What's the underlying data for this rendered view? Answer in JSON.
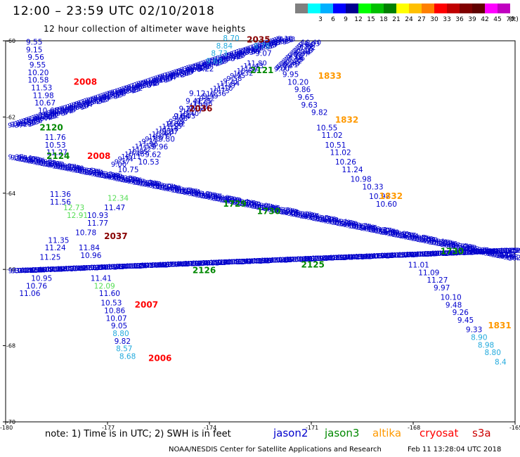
{
  "title": "12:00 – 23:59 UTC 02/10/2018",
  "subtitle": "12 hour collection of altimeter wave heights",
  "scale": {
    "unit": "(ft)",
    "swatches": [
      {
        "label": "",
        "color": "#808080"
      },
      {
        "label": "3",
        "color": "#00ffff"
      },
      {
        "label": "6",
        "color": "#00b0ff"
      },
      {
        "label": "9",
        "color": "#0000ff"
      },
      {
        "label": "12",
        "color": "#000090"
      },
      {
        "label": "15",
        "color": "#00ff00"
      },
      {
        "label": "18",
        "color": "#00c000"
      },
      {
        "label": "21",
        "color": "#008000"
      },
      {
        "label": "24",
        "color": "#ffff00"
      },
      {
        "label": "27",
        "color": "#ffc000"
      },
      {
        "label": "30",
        "color": "#ff8000"
      },
      {
        "label": "33",
        "color": "#ff0000"
      },
      {
        "label": "36",
        "color": "#c00000"
      },
      {
        "label": "39",
        "color": "#800000"
      },
      {
        "label": "42",
        "color": "#600000"
      },
      {
        "label": "45",
        "color": "#ff00ff"
      },
      {
        "label": "70",
        "color": "#c000c0"
      }
    ]
  },
  "axes": {
    "lat_ticks": [
      "-60",
      "-62",
      "-64",
      "-66",
      "-68",
      "-70"
    ],
    "lon_ticks": [
      "-180",
      "-177",
      "-174",
      "-171",
      "-168",
      "-165"
    ]
  },
  "note": "note: 1) Time is in UTC; 2) SWH is in feet",
  "legend": [
    {
      "name": "jason2",
      "color": "#0000cc"
    },
    {
      "name": "jason3",
      "color": "#008800"
    },
    {
      "name": "altika",
      "color": "#ff9900"
    },
    {
      "name": "cryosat",
      "color": "#ff0000"
    },
    {
      "name": "s3a",
      "color": "#cc0000"
    }
  ],
  "credit": "NOAA/NESDIS Center for Satellite Applications and Research",
  "stamp": "Feb 11 13:28:04 UTC 2018",
  "colors": {
    "jason2": "#0000cc",
    "jason3": "#008800",
    "jason3_light": "#55dd55",
    "altika": "#ff9900",
    "cryosat": "#ff0000",
    "s3a": "#880000",
    "sentinel_cyan": "#22aadd"
  },
  "labels": [
    {
      "t": "9.55",
      "lon": -179.4,
      "lat": -60.1,
      "c": "jason2"
    },
    {
      "t": "9.15",
      "lon": -179.4,
      "lat": -60.3,
      "c": "jason2"
    },
    {
      "t": "9.56",
      "lon": -179.35,
      "lat": -60.5,
      "c": "jason2"
    },
    {
      "t": "9.55",
      "lon": -179.3,
      "lat": -60.7,
      "c": "jason2"
    },
    {
      "t": "10.20",
      "lon": -179.35,
      "lat": -60.9,
      "c": "jason2"
    },
    {
      "t": "10.58",
      "lon": -179.35,
      "lat": -61.1,
      "c": "jason2"
    },
    {
      "t": "11.53",
      "lon": -179.25,
      "lat": -61.3,
      "c": "jason2"
    },
    {
      "t": "11.98",
      "lon": -179.2,
      "lat": -61.5,
      "c": "jason2"
    },
    {
      "t": "10.67",
      "lon": -179.15,
      "lat": -61.7,
      "c": "jason2"
    },
    {
      "t": "10.65",
      "lon": -179.05,
      "lat": -61.9,
      "c": "jason2"
    },
    {
      "t": "11.76",
      "lon": -178.85,
      "lat": -62.6,
      "c": "jason2"
    },
    {
      "t": "10.53",
      "lon": -178.85,
      "lat": -62.8,
      "c": "jason2"
    },
    {
      "t": "11.27",
      "lon": -178.8,
      "lat": -63.0,
      "c": "jason2"
    },
    {
      "t": "11.36",
      "lon": -178.7,
      "lat": -64.1,
      "c": "jason2"
    },
    {
      "t": "11.56",
      "lon": -178.7,
      "lat": -64.3,
      "c": "jason2"
    },
    {
      "t": "11.24",
      "lon": -178.85,
      "lat": -65.5,
      "c": "jason2"
    },
    {
      "t": "11.35",
      "lon": -178.75,
      "lat": -65.3,
      "c": "jason2"
    },
    {
      "t": "11.25",
      "lon": -179.0,
      "lat": -65.75,
      "c": "jason2"
    },
    {
      "t": "10.95",
      "lon": -179.25,
      "lat": -66.3,
      "c": "jason2"
    },
    {
      "t": "10.76",
      "lon": -179.4,
      "lat": -66.5,
      "c": "jason2"
    },
    {
      "t": "11.06",
      "lon": -179.6,
      "lat": -66.7,
      "c": "jason2"
    },
    {
      "t": "12.34",
      "lon": -177.0,
      "lat": -64.2,
      "c": "jason3_light"
    },
    {
      "t": "11.47",
      "lon": -177.1,
      "lat": -64.45,
      "c": "jason2"
    },
    {
      "t": "12.73",
      "lon": -178.3,
      "lat": -64.45,
      "c": "jason3_light"
    },
    {
      "t": "10.93",
      "lon": -177.6,
      "lat": -64.65,
      "c": "jason2"
    },
    {
      "t": "12.91",
      "lon": -178.2,
      "lat": -64.65,
      "c": "jason3_light"
    },
    {
      "t": "11.77",
      "lon": -177.6,
      "lat": -64.85,
      "c": "jason2"
    },
    {
      "t": "10.78",
      "lon": -177.95,
      "lat": -65.1,
      "c": "jason2"
    },
    {
      "t": "11.84",
      "lon": -177.85,
      "lat": -65.5,
      "c": "jason2"
    },
    {
      "t": "10.96",
      "lon": -177.8,
      "lat": -65.7,
      "c": "jason2"
    },
    {
      "t": "11.41",
      "lon": -177.5,
      "lat": -66.3,
      "c": "jason2"
    },
    {
      "t": "12.09",
      "lon": -177.4,
      "lat": -66.5,
      "c": "jason3_light"
    },
    {
      "t": "11.60",
      "lon": -177.25,
      "lat": -66.7,
      "c": "jason2"
    },
    {
      "t": "10.53",
      "lon": -177.2,
      "lat": -66.95,
      "c": "jason2"
    },
    {
      "t": "10.86",
      "lon": -177.1,
      "lat": -67.15,
      "c": "jason2"
    },
    {
      "t": "10.07",
      "lon": -177.05,
      "lat": -67.35,
      "c": "jason2"
    },
    {
      "t": "9.05",
      "lon": -176.9,
      "lat": -67.55,
      "c": "jason2"
    },
    {
      "t": "8.80",
      "lon": -176.85,
      "lat": -67.75,
      "c": "sentinel_cyan"
    },
    {
      "t": "9.82",
      "lon": -176.8,
      "lat": -67.95,
      "c": "jason2"
    },
    {
      "t": "8.57",
      "lon": -176.75,
      "lat": -68.15,
      "c": "sentinel_cyan"
    },
    {
      "t": "8.68",
      "lon": -176.65,
      "lat": -68.35,
      "c": "sentinel_cyan"
    },
    {
      "t": "10.53",
      "lon": -176.1,
      "lat": -63.25,
      "c": "jason2"
    },
    {
      "t": "10.75",
      "lon": -176.7,
      "lat": -63.45,
      "c": "jason2"
    },
    {
      "t": "9.62",
      "lon": -175.9,
      "lat": -63.05,
      "c": "jason2"
    },
    {
      "t": "9.96",
      "lon": -175.7,
      "lat": -62.85,
      "c": "jason2"
    },
    {
      "t": "9.80",
      "lon": -175.5,
      "lat": -62.65,
      "c": "jason2"
    },
    {
      "t": "9.87",
      "lon": -175.4,
      "lat": -62.45,
      "c": "jason2"
    },
    {
      "t": "9.89",
      "lon": -175.25,
      "lat": -62.25,
      "c": "jason2"
    },
    {
      "t": "9.64",
      "lon": -175.05,
      "lat": -62.05,
      "c": "jason2"
    },
    {
      "t": "9.23",
      "lon": -174.9,
      "lat": -61.85,
      "c": "jason2"
    },
    {
      "t": "9.41",
      "lon": -174.7,
      "lat": -61.65,
      "c": "jason2"
    },
    {
      "t": "9.12",
      "lon": -174.6,
      "lat": -61.45,
      "c": "jason2"
    },
    {
      "t": "9.22",
      "lon": -174.35,
      "lat": -60.8,
      "c": "jason2"
    },
    {
      "t": "9.63",
      "lon": -174.1,
      "lat": -60.6,
      "c": "sentinel_cyan"
    },
    {
      "t": "8.73",
      "lon": -173.95,
      "lat": -60.4,
      "c": "sentinel_cyan"
    },
    {
      "t": "8.84",
      "lon": -173.8,
      "lat": -60.2,
      "c": "sentinel_cyan"
    },
    {
      "t": "8.70",
      "lon": -173.6,
      "lat": -60.0,
      "c": "sentinel_cyan"
    },
    {
      "t": "8.78",
      "lon": -172.7,
      "lat": -60.2,
      "c": "sentinel_cyan"
    },
    {
      "t": "9.07",
      "lon": -172.65,
      "lat": -60.4,
      "c": "jason2"
    },
    {
      "t": "9.95",
      "lon": -171.85,
      "lat": -60.95,
      "c": "jason2"
    },
    {
      "t": "10.20",
      "lon": -171.7,
      "lat": -61.15,
      "c": "jason2"
    },
    {
      "t": "9.86",
      "lon": -171.5,
      "lat": -61.35,
      "c": "jason2"
    },
    {
      "t": "9.65",
      "lon": -171.4,
      "lat": -61.55,
      "c": "jason2"
    },
    {
      "t": "9.63",
      "lon": -171.3,
      "lat": -61.75,
      "c": "jason2"
    },
    {
      "t": "9.82",
      "lon": -171.0,
      "lat": -61.95,
      "c": "jason2"
    },
    {
      "t": "10.55",
      "lon": -170.85,
      "lat": -62.35,
      "c": "jason2"
    },
    {
      "t": "11.02",
      "lon": -170.7,
      "lat": -62.55,
      "c": "jason2"
    },
    {
      "t": "10.51",
      "lon": -170.6,
      "lat": -62.8,
      "c": "jason2"
    },
    {
      "t": "11.02",
      "lon": -170.45,
      "lat": -63.0,
      "c": "jason2"
    },
    {
      "t": "10.26",
      "lon": -170.3,
      "lat": -63.25,
      "c": "jason2"
    },
    {
      "t": "11.24",
      "lon": -170.1,
      "lat": -63.45,
      "c": "jason2"
    },
    {
      "t": "10.98",
      "lon": -169.85,
      "lat": -63.7,
      "c": "jason2"
    },
    {
      "t": "10.33",
      "lon": -169.5,
      "lat": -63.9,
      "c": "jason2"
    },
    {
      "t": "10.97",
      "lon": -169.3,
      "lat": -64.15,
      "c": "jason2"
    },
    {
      "t": "10.60",
      "lon": -169.1,
      "lat": -64.35,
      "c": "jason2"
    },
    {
      "t": "11.01",
      "lon": -168.15,
      "lat": -65.95,
      "c": "jason2"
    },
    {
      "t": "11.09",
      "lon": -167.85,
      "lat": -66.15,
      "c": "jason2"
    },
    {
      "t": "11.27",
      "lon": -167.6,
      "lat": -66.35,
      "c": "jason2"
    },
    {
      "t": "9.97",
      "lon": -167.4,
      "lat": -66.55,
      "c": "jason2"
    },
    {
      "t": "10.10",
      "lon": -167.2,
      "lat": -66.8,
      "c": "jason2"
    },
    {
      "t": "9.48",
      "lon": -167.05,
      "lat": -67.0,
      "c": "jason2"
    },
    {
      "t": "9.26",
      "lon": -166.85,
      "lat": -67.2,
      "c": "jason2"
    },
    {
      "t": "9.45",
      "lon": -166.7,
      "lat": -67.4,
      "c": "jason2"
    },
    {
      "t": "9.33",
      "lon": -166.45,
      "lat": -67.65,
      "c": "jason2"
    },
    {
      "t": "8.90",
      "lon": -166.3,
      "lat": -67.85,
      "c": "sentinel_cyan"
    },
    {
      "t": "8.98",
      "lon": -166.1,
      "lat": -68.05,
      "c": "sentinel_cyan"
    },
    {
      "t": "8.80",
      "lon": -165.9,
      "lat": -68.25,
      "c": "sentinel_cyan"
    },
    {
      "t": "8.4",
      "lon": -165.6,
      "lat": -68.5,
      "c": "sentinel_cyan"
    }
  ],
  "times": [
    {
      "t": "2008",
      "lon": -178.0,
      "lat": -61.15,
      "c": "cryosat"
    },
    {
      "t": "2008",
      "lon": -177.6,
      "lat": -63.1,
      "c": "cryosat"
    },
    {
      "t": "2037",
      "lon": -177.1,
      "lat": -65.2,
      "c": "s3a"
    },
    {
      "t": "2007",
      "lon": -176.2,
      "lat": -67.0,
      "c": "cryosat"
    },
    {
      "t": "2006",
      "lon": -175.8,
      "lat": -68.4,
      "c": "cryosat"
    },
    {
      "t": "2036",
      "lon": -174.6,
      "lat": -61.85,
      "c": "s3a"
    },
    {
      "t": "2035",
      "lon": -172.9,
      "lat": -60.05,
      "c": "s3a"
    },
    {
      "t": "1833",
      "lon": -170.8,
      "lat": -61.0,
      "c": "altika"
    },
    {
      "t": "1832",
      "lon": -170.3,
      "lat": -62.15,
      "c": "altika"
    },
    {
      "t": "1832",
      "lon": -169.0,
      "lat": -64.15,
      "c": "altika"
    },
    {
      "t": "1831",
      "lon": -165.8,
      "lat": -67.55,
      "c": "altika"
    },
    {
      "t": "2120",
      "lon": -179.0,
      "lat": -62.35,
      "c": "jason3"
    },
    {
      "t": "2124",
      "lon": -178.8,
      "lat": -63.1,
      "c": "jason3"
    },
    {
      "t": "2121",
      "lon": -172.8,
      "lat": -60.85,
      "c": "jason3"
    },
    {
      "t": "1729",
      "lon": -173.6,
      "lat": -64.35,
      "c": "jason3"
    },
    {
      "t": "1730",
      "lon": -172.6,
      "lat": -64.55,
      "c": "jason3"
    },
    {
      "t": "1730",
      "lon": -167.2,
      "lat": -65.6,
      "c": "jason3"
    },
    {
      "t": "2125",
      "lon": -171.3,
      "lat": -65.95,
      "c": "jason3"
    },
    {
      "t": "2126",
      "lon": -174.5,
      "lat": -66.1,
      "c": "jason3"
    }
  ],
  "tracks": [
    {
      "c": "jason2",
      "from": [
        -180,
        -62.3
      ],
      "to": [
        -172.0,
        -60.0
      ],
      "n": 130
    },
    {
      "c": "jason2",
      "from": [
        -180,
        -63.1
      ],
      "to": [
        -165.0,
        -65.8
      ],
      "n": 210
    },
    {
      "c": "jason2",
      "from": [
        -180,
        -66.1
      ],
      "to": [
        -165.0,
        -65.55
      ],
      "n": 200
    },
    {
      "c": "jason2",
      "from": [
        -176.9,
        -63.3
      ],
      "to": [
        -172.9,
        -60.65
      ],
      "n": 40
    },
    {
      "c": "jason2",
      "from": [
        -172.1,
        -60.8
      ],
      "to": [
        -171.3,
        -60.1
      ],
      "n": 20
    }
  ]
}
